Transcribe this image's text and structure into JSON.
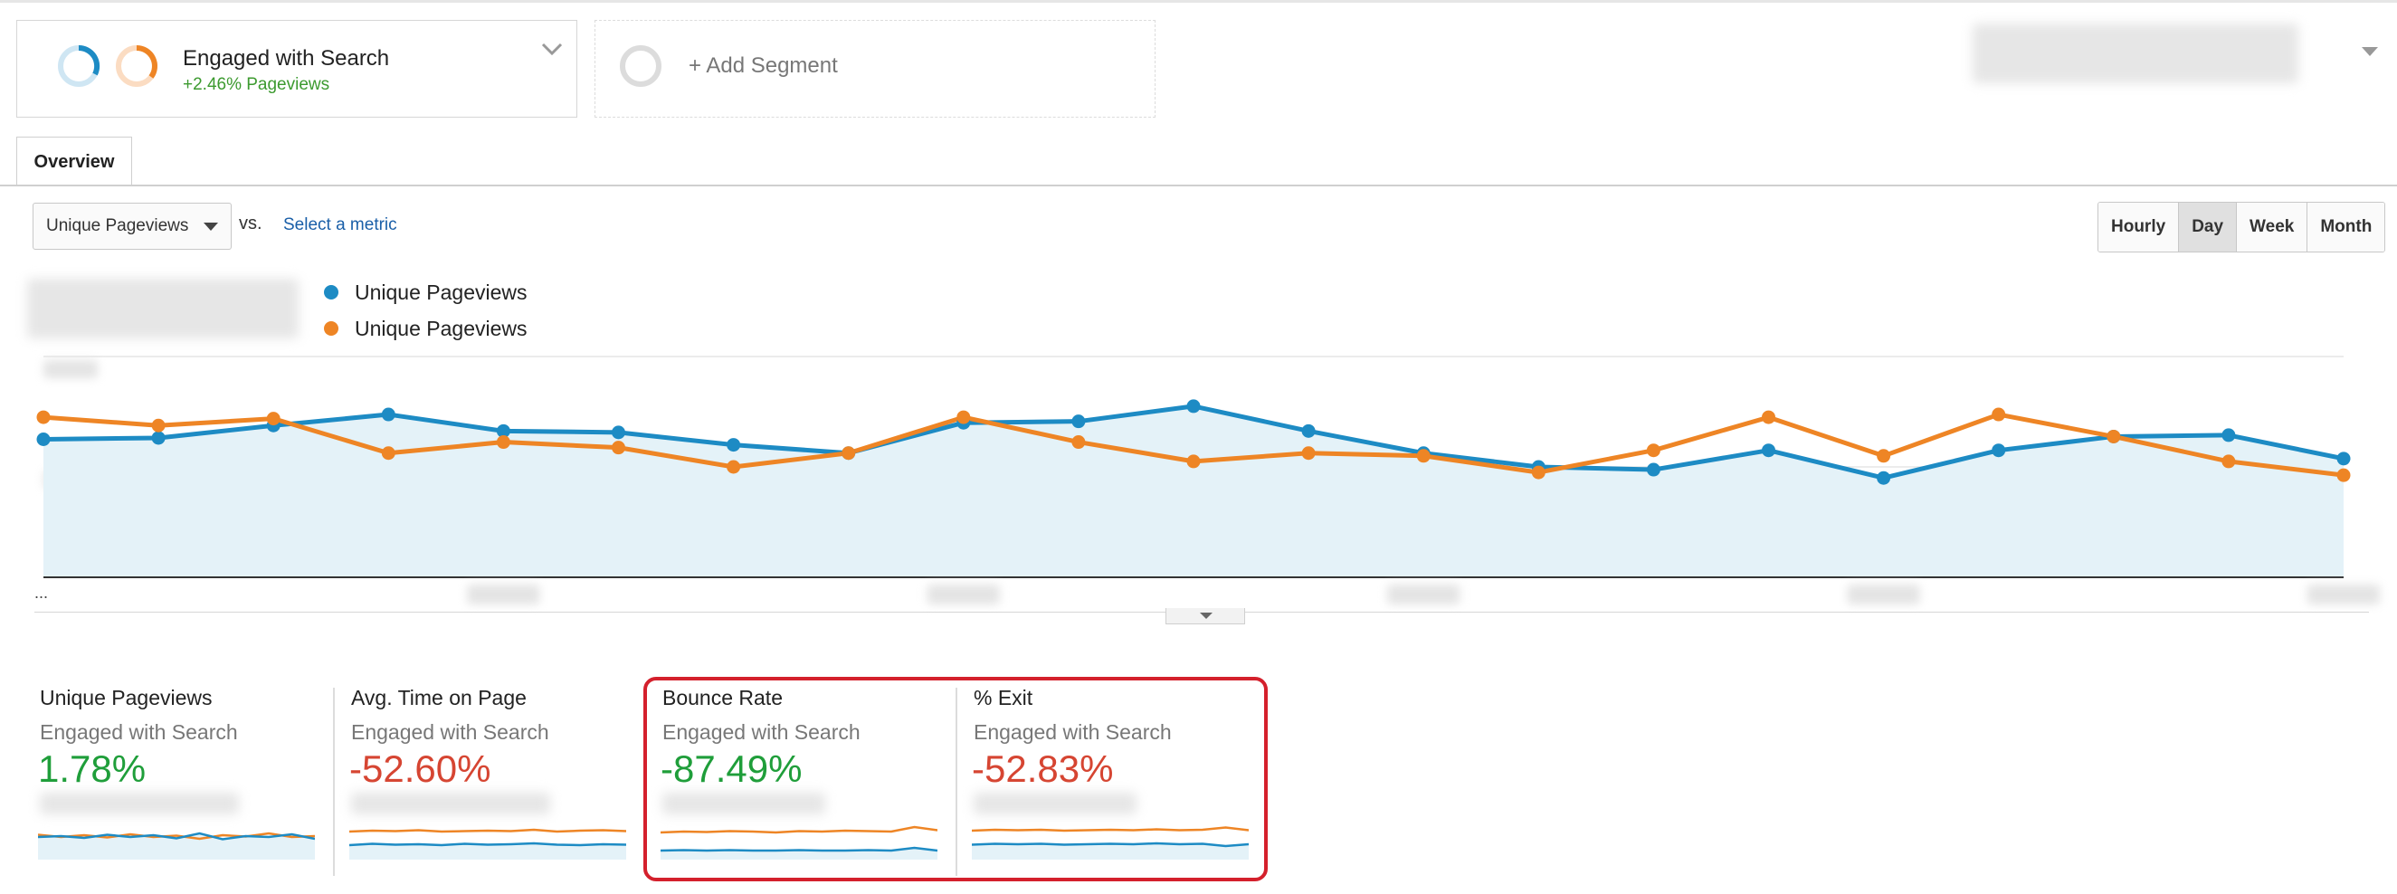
{
  "segments": [
    {
      "title": "Engaged with Search",
      "subtitle": "+2.46% Pageviews"
    },
    {
      "title": "+ Add Segment"
    }
  ],
  "tabs": [
    {
      "label": "Overview"
    }
  ],
  "metric_selector": {
    "selected": "Unique Pageviews",
    "vs_label": "vs.",
    "select_metric_label": "Select a metric"
  },
  "periods": [
    "Hourly",
    "Day",
    "Week",
    "Month"
  ],
  "active_period": "Day",
  "colors": {
    "blue_series": "#1d8bc4",
    "orange_series": "#ee8525",
    "area_fill": "#e4f2f8",
    "positive": "#1f9e3a",
    "negative": "#d64532",
    "highlight": "#d4202c"
  },
  "legend": [
    {
      "label": "Unique Pageviews",
      "color": "#1d8bc4"
    },
    {
      "label": "Unique Pageviews",
      "color": "#ee8525"
    }
  ],
  "chart_data": {
    "type": "line",
    "x": [
      1,
      2,
      3,
      4,
      5,
      6,
      7,
      8,
      9,
      10,
      11,
      12,
      13,
      14,
      15,
      16,
      17,
      18,
      19,
      20,
      21
    ],
    "series": [
      {
        "name": "Unique Pageviews",
        "color": "#1d8bc4",
        "values": [
          50,
          50.5,
          55,
          59,
          53,
          52.5,
          48,
          45,
          56,
          56.5,
          62,
          53,
          45,
          40,
          39,
          46,
          36,
          46,
          51,
          51.5,
          43
        ]
      },
      {
        "name": "Unique Pageviews",
        "color": "#ee8525",
        "values": [
          58,
          55,
          57.5,
          45,
          49,
          47,
          40,
          45,
          58,
          49,
          42,
          45,
          44,
          38,
          46,
          58,
          44,
          59,
          51,
          42,
          37
        ]
      }
    ],
    "ylim": [
      0,
      80
    ],
    "grid": true,
    "legend_position": "top-left"
  },
  "ellipsis": "...",
  "scorecards": [
    {
      "title": "Unique Pageviews",
      "segment": "Engaged with Search",
      "value": "1.78%",
      "sign": "positive",
      "spark_blue": [
        5,
        5.2,
        4.8,
        5.5,
        5,
        5.4,
        4.7,
        5.8,
        4.5,
        5.2,
        5,
        5.6,
        4.6
      ],
      "spark_orange": [
        5.5,
        5,
        5.4,
        4.9,
        5.6,
        5,
        5.3,
        4.6,
        5.4,
        5.1,
        5.8,
        5,
        5.2
      ]
    },
    {
      "title": "Avg. Time on Page",
      "segment": "Engaged with Search",
      "value": "-52.60%",
      "sign": "negative",
      "spark_blue": [
        3.2,
        3.5,
        3.3,
        3.4,
        3.2,
        3.5,
        3.3,
        3.4,
        3.6,
        3.3,
        3.2,
        3.4,
        3.3
      ],
      "spark_orange": [
        6.2,
        6.4,
        6.3,
        6.5,
        6.2,
        6.3,
        6.4,
        6.3,
        6.6,
        6.2,
        6.4,
        6.5,
        6.3
      ]
    },
    {
      "title": "Bounce Rate",
      "segment": "Engaged with Search",
      "value": "-87.49%",
      "sign": "positive",
      "spark_blue": [
        2,
        2.1,
        2,
        2.1,
        2,
        2,
        2.1,
        2,
        2,
        2.1,
        2,
        2.6,
        2
      ],
      "spark_orange": [
        6,
        6.2,
        6.1,
        6.3,
        6.2,
        6,
        6.3,
        6.2,
        6.4,
        6.3,
        6.2,
        7.2,
        6.5
      ]
    },
    {
      "title": "% Exit",
      "segment": "Engaged with Search",
      "value": "-52.83%",
      "sign": "negative",
      "spark_blue": [
        3.3,
        3.5,
        3.4,
        3.5,
        3.3,
        3.4,
        3.5,
        3.4,
        3.6,
        3.4,
        3.5,
        3,
        3.4
      ],
      "spark_orange": [
        6.4,
        6.6,
        6.5,
        6.6,
        6.4,
        6.5,
        6.6,
        6.5,
        6.7,
        6.5,
        6.6,
        7.1,
        6.5
      ]
    }
  ]
}
